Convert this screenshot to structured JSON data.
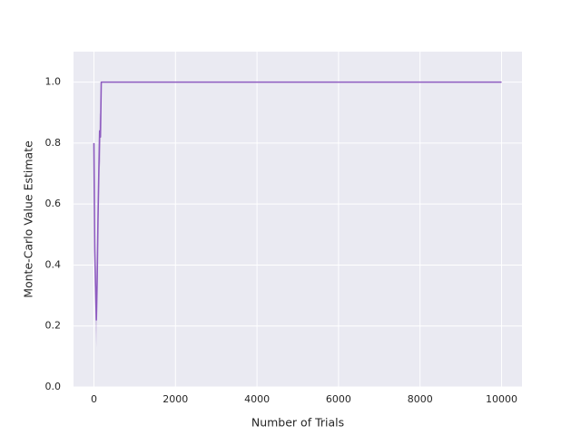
{
  "chart_data": {
    "type": "line",
    "xlabel": "Number of Trials",
    "ylabel": "Monte-Carlo Value Estimate",
    "x": [
      0,
      20,
      40,
      60,
      80,
      100,
      120,
      140,
      160,
      180,
      10000
    ],
    "values": [
      0.8,
      0.45,
      0.33,
      0.22,
      0.35,
      0.55,
      0.7,
      0.84,
      0.82,
      1.0,
      1.0
    ],
    "ci_lower": [
      0.8,
      0.35,
      0.2,
      0.13,
      0.25,
      0.45,
      0.6,
      0.75,
      0.72,
      1.0,
      1.0
    ],
    "ci_upper": [
      0.8,
      0.55,
      0.45,
      0.32,
      0.45,
      0.65,
      0.8,
      0.9,
      0.88,
      1.0,
      1.0
    ],
    "color": "#8e5cc0",
    "xlim": [
      -500,
      10500
    ],
    "ylim": [
      0,
      1.1
    ],
    "xticks": [
      0,
      2000,
      4000,
      6000,
      8000,
      10000
    ],
    "yticks": [
      {
        "value": 0,
        "label": "0.0"
      },
      0.2,
      0.4,
      0.6,
      0.8,
      {
        "value": 1,
        "label": "1.0"
      }
    ],
    "grid": true
  }
}
